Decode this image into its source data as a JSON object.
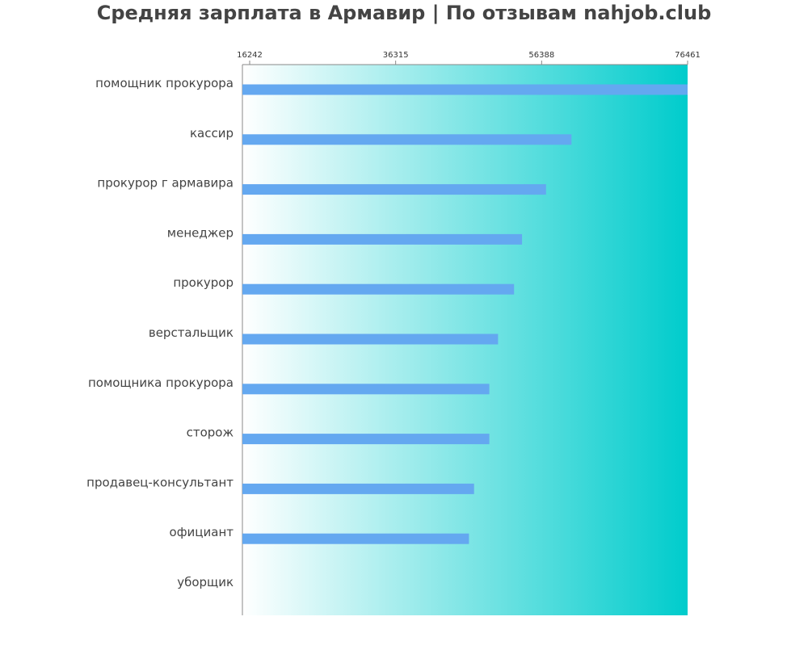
{
  "chart_data": {
    "type": "bar",
    "orientation": "horizontal",
    "title": "Средняя зарплата в Армавир | По отзывам nahjob.club",
    "categories": [
      "помощник прокурора",
      "кассир",
      "прокурор г армавира",
      "менеджер",
      "прокурор",
      "верстальщик",
      "помощника прокурора",
      "сторож",
      "продавец-консультант",
      "официант",
      "уборщик"
    ],
    "values": [
      76461,
      60500,
      57000,
      53700,
      52600,
      50400,
      49200,
      49200,
      47100,
      46400,
      14600
    ],
    "tick_labels": [
      "16242",
      "36315",
      "56388",
      "76461"
    ],
    "tick_values": [
      16242,
      36315,
      56388,
      76461
    ],
    "bar_color": "#64a8f0",
    "background_gradient": [
      "#ffffff",
      "#00cccc"
    ],
    "axis_position": "top",
    "grid": false,
    "legend": "none"
  }
}
